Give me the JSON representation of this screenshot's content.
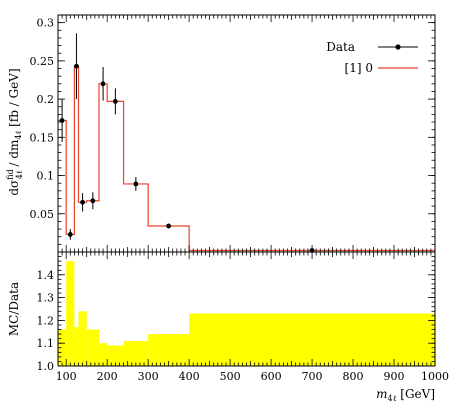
{
  "chart_data": [
    {
      "type": "line",
      "panel": "main",
      "xlim": [
        80,
        1000
      ],
      "ylim": [
        0,
        0.31
      ],
      "ylabel_parts": {
        "d": "d",
        "sigma": "σ",
        "sup": "fid",
        "sub": "4ℓ",
        "rest": " / dm",
        "rest_sub": "4ℓ",
        "unit": " [fb / GeV]"
      },
      "yticks": [
        0.05,
        0.1,
        0.15,
        0.2,
        0.25,
        0.3
      ],
      "ytick_labels": [
        "0.05",
        "0.1",
        "0.15",
        "0.2",
        "0.25",
        "0.3"
      ],
      "legend": {
        "position": "top-right",
        "entries": [
          "Data",
          "[1] 0"
        ]
      },
      "series": [
        {
          "name": "Data",
          "color": "#000000",
          "points": [
            {
              "x": 90,
              "y": 0.172,
              "yerr": 0.028
            },
            {
              "x": 110,
              "y": 0.023,
              "yerr": 0.007
            },
            {
              "x": 125,
              "y": 0.243,
              "yerr": 0.043
            },
            {
              "x": 140,
              "y": 0.065,
              "yerr": 0.012
            },
            {
              "x": 165,
              "y": 0.067,
              "yerr": 0.011
            },
            {
              "x": 190,
              "y": 0.22,
              "yerr": 0.022
            },
            {
              "x": 220,
              "y": 0.197,
              "yerr": 0.017
            },
            {
              "x": 270,
              "y": 0.089,
              "yerr": 0.009
            },
            {
              "x": 350,
              "y": 0.034,
              "yerr": 0.003
            },
            {
              "x": 700,
              "y": 0.002,
              "yerr": 0.0004
            }
          ]
        },
        {
          "name": "[1] 0",
          "color": "#e8442e",
          "bins": [
            {
              "x0": 80,
              "x1": 100,
              "y": 0.172
            },
            {
              "x0": 100,
              "x1": 120,
              "y": 0.023
            },
            {
              "x0": 120,
              "x1": 130,
              "y": 0.243
            },
            {
              "x0": 130,
              "x1": 150,
              "y": 0.065
            },
            {
              "x0": 150,
              "x1": 180,
              "y": 0.067
            },
            {
              "x0": 180,
              "x1": 200,
              "y": 0.22
            },
            {
              "x0": 200,
              "x1": 240,
              "y": 0.197
            },
            {
              "x0": 240,
              "x1": 300,
              "y": 0.089
            },
            {
              "x0": 300,
              "x1": 400,
              "y": 0.034
            },
            {
              "x0": 400,
              "x1": 1000,
              "y": 0.002
            }
          ]
        }
      ]
    },
    {
      "type": "area",
      "panel": "ratio",
      "xlim": [
        80,
        1000
      ],
      "ylim": [
        1.0,
        1.5
      ],
      "ylabel": "MC/Data",
      "yticks": [
        1.0,
        1.1,
        1.2,
        1.3,
        1.4
      ],
      "ytick_labels": [
        "1.0",
        "1.1",
        "1.2",
        "1.3",
        "1.4"
      ],
      "xticks": [
        100,
        200,
        300,
        400,
        500,
        600,
        700,
        800,
        900,
        1000
      ],
      "xtick_labels": [
        "100",
        "200",
        "300",
        "400",
        "500",
        "600",
        "700",
        "800",
        "900",
        "1000"
      ],
      "xlabel_parts": {
        "m": "m",
        "sub": "4ℓ",
        "unit": " [GeV]"
      },
      "band_color": "#ffff00",
      "bins": [
        {
          "x0": 80,
          "x1": 100,
          "y": 1.16
        },
        {
          "x0": 100,
          "x1": 120,
          "y": 1.46
        },
        {
          "x0": 120,
          "x1": 130,
          "y": 1.17
        },
        {
          "x0": 130,
          "x1": 150,
          "y": 1.24
        },
        {
          "x0": 150,
          "x1": 180,
          "y": 1.16
        },
        {
          "x0": 180,
          "x1": 200,
          "y": 1.1
        },
        {
          "x0": 200,
          "x1": 240,
          "y": 1.09
        },
        {
          "x0": 240,
          "x1": 300,
          "y": 1.11
        },
        {
          "x0": 300,
          "x1": 400,
          "y": 1.14
        },
        {
          "x0": 400,
          "x1": 1000,
          "y": 1.23
        }
      ]
    }
  ]
}
